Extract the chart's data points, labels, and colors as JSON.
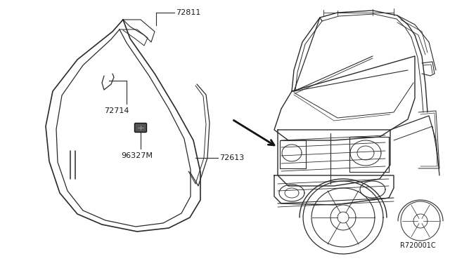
{
  "bg_color": "#ffffff",
  "line_color": "#2a2a2a",
  "text_color": "#1a1a1a",
  "ref_code": "R720001C",
  "fs_label": 8.0,
  "fs_ref": 7.0
}
